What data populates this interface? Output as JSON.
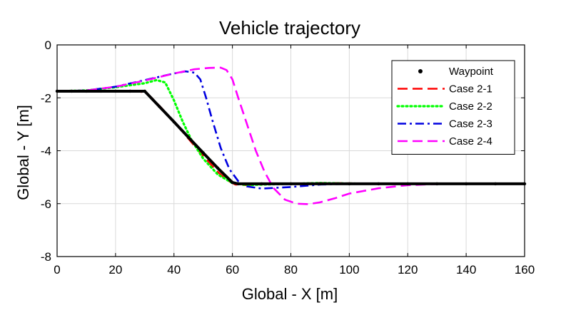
{
  "chart_data": {
    "type": "line",
    "title": "Vehicle trajectory",
    "xlabel": "Global - X [m]",
    "ylabel": "Global - Y [m]",
    "xlim": [
      0,
      160
    ],
    "ylim": [
      -8,
      0
    ],
    "xticks": [
      0,
      20,
      40,
      60,
      80,
      100,
      120,
      140,
      160
    ],
    "yticks": [
      0,
      -2,
      -4,
      -6,
      -8
    ],
    "grid": true,
    "legend_position": "top-right",
    "series": [
      {
        "name": "Waypoint",
        "color": "#000000",
        "style": "dots",
        "x": [
          0,
          5,
          10,
          15,
          20,
          25,
          30,
          35,
          40,
          45,
          50,
          55,
          60,
          62,
          70,
          80,
          90,
          100,
          110,
          120,
          130,
          140,
          150,
          160
        ],
        "y": [
          -1.75,
          -1.75,
          -1.75,
          -1.75,
          -1.75,
          -1.75,
          -1.75,
          -2.33,
          -2.91,
          -3.5,
          -4.08,
          -4.66,
          -5.2,
          -5.25,
          -5.25,
          -5.25,
          -5.25,
          -5.25,
          -5.25,
          -5.25,
          -5.25,
          -5.25,
          -5.25,
          -5.25
        ]
      },
      {
        "name": "Case 2-1",
        "color": "#ff0000",
        "style": "dashed",
        "x": [
          0,
          10,
          20,
          28,
          31,
          35,
          40,
          45,
          50,
          55,
          58,
          61,
          65,
          70,
          80,
          90,
          100,
          110,
          120,
          140,
          160
        ],
        "y": [
          -1.75,
          -1.75,
          -1.75,
          -1.75,
          -1.85,
          -2.3,
          -2.9,
          -3.55,
          -4.2,
          -4.8,
          -5.1,
          -5.28,
          -5.3,
          -5.27,
          -5.25,
          -5.22,
          -5.23,
          -5.25,
          -5.25,
          -5.25,
          -5.25
        ]
      },
      {
        "name": "Case 2-2",
        "color": "#00ff00",
        "style": "dotted",
        "x": [
          0,
          10,
          20,
          30,
          34,
          37,
          40,
          43,
          46,
          50,
          55,
          60,
          65,
          70,
          80,
          90,
          100,
          120,
          140,
          160
        ],
        "y": [
          -1.75,
          -1.72,
          -1.6,
          -1.45,
          -1.33,
          -1.42,
          -2.1,
          -2.9,
          -3.6,
          -4.3,
          -4.9,
          -5.22,
          -5.3,
          -5.28,
          -5.25,
          -5.22,
          -5.24,
          -5.25,
          -5.25,
          -5.25
        ]
      },
      {
        "name": "Case 2-3",
        "color": "#0000e0",
        "style": "dashdot",
        "x": [
          0,
          10,
          20,
          30,
          40,
          44,
          47,
          49,
          51,
          53,
          56,
          59,
          62,
          65,
          70,
          80,
          90,
          100,
          120,
          140,
          160
        ],
        "y": [
          -1.75,
          -1.72,
          -1.58,
          -1.33,
          -1.08,
          -1.0,
          -1.05,
          -1.3,
          -2.0,
          -2.8,
          -3.9,
          -4.7,
          -5.15,
          -5.35,
          -5.43,
          -5.37,
          -5.28,
          -5.25,
          -5.25,
          -5.25,
          -5.25
        ]
      },
      {
        "name": "Case 2-4",
        "color": "#ff00ff",
        "style": "dashed",
        "x": [
          0,
          10,
          20,
          30,
          40,
          47,
          52,
          56,
          58,
          60,
          62,
          65,
          68,
          71,
          74,
          78,
          82,
          86,
          90,
          95,
          100,
          110,
          120,
          130,
          140,
          150,
          160
        ],
        "y": [
          -1.75,
          -1.72,
          -1.58,
          -1.35,
          -1.08,
          -0.92,
          -0.87,
          -0.86,
          -0.95,
          -1.3,
          -2.0,
          -3.0,
          -4.0,
          -4.8,
          -5.4,
          -5.85,
          -6.0,
          -6.02,
          -5.95,
          -5.8,
          -5.62,
          -5.42,
          -5.3,
          -5.26,
          -5.25,
          -5.25,
          -5.25
        ]
      }
    ]
  }
}
